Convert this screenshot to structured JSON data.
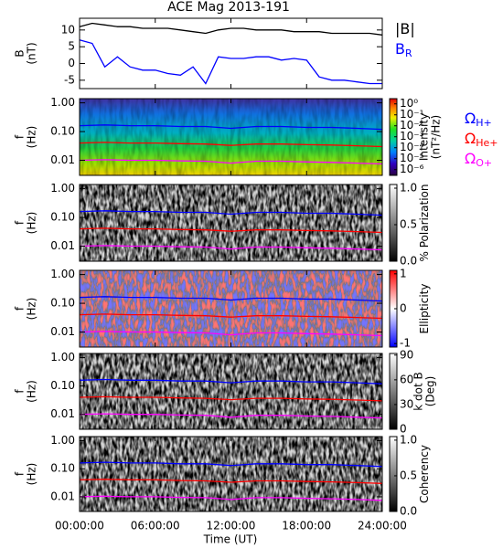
{
  "chart_data": {
    "title": "ACE Mag 2013-191",
    "xlabel": "Time (UT)",
    "xlim": [
      0,
      24
    ],
    "xticks": [
      {
        "value": 0,
        "label": "00:00:00"
      },
      {
        "value": 6,
        "label": "06:00:00"
      },
      {
        "value": 12,
        "label": "12:00:00"
      },
      {
        "value": 18,
        "label": "18:00:00"
      },
      {
        "value": 24,
        "label": "24:00:00"
      }
    ],
    "panels": [
      {
        "type": "line",
        "ylabel": [
          "B",
          "(nT)"
        ],
        "ylim": [
          -7.5,
          13.5
        ],
        "yticks": [
          -5,
          0,
          5,
          10
        ],
        "x": [
          0,
          1,
          2,
          3,
          4,
          5,
          6,
          7,
          8,
          9,
          10,
          11,
          12,
          13,
          14,
          15,
          16,
          17,
          18,
          19,
          20,
          21,
          22,
          23,
          24
        ],
        "series": [
          {
            "name": "|B|",
            "color": "#000000",
            "values": [
              11,
              12,
              11.5,
              11,
              11,
              10.5,
              10.5,
              10.5,
              10,
              9.5,
              9,
              10,
              10.5,
              10.5,
              10,
              10,
              10,
              9.5,
              9.5,
              9.5,
              9,
              9,
              9,
              9,
              8.5
            ]
          },
          {
            "name": "B",
            "name_sub": "R",
            "color": "#0000ff",
            "values": [
              7,
              6,
              -1,
              2,
              -1,
              -2,
              -2,
              -3,
              -3.5,
              -1,
              -6,
              2,
              1.5,
              1.5,
              2,
              2,
              1,
              1.5,
              1,
              -4,
              -5,
              -5,
              -5.5,
              -6,
              -6
            ]
          }
        ]
      },
      {
        "type": "spectrogram",
        "colormap": "rainbow",
        "legend": true,
        "ylabel": [
          "f",
          "(Hz)"
        ],
        "log_y": true,
        "cbar_label": [
          "Intensity",
          "(nT²/Hz)"
        ],
        "clim": [
          3e-07,
          3
        ],
        "log_c": true,
        "cticks": [
          {
            "value": 1,
            "label": "10⁰"
          },
          {
            "value": 0.1,
            "label": "10⁻¹"
          },
          {
            "value": 0.01,
            "label": "10⁻²"
          },
          {
            "value": 0.001,
            "label": "10⁻³"
          },
          {
            "value": 0.0001,
            "label": "10⁻⁴"
          },
          {
            "value": 1e-05,
            "label": "10⁻⁵"
          },
          {
            "value": 1e-06,
            "label": "10⁻⁶"
          }
        ]
      },
      {
        "type": "spectrogram",
        "colormap": "gray",
        "ylabel": [
          "f",
          "(Hz)"
        ],
        "log_y": true,
        "cbar_label": [
          "% Polarization"
        ],
        "clim": [
          0,
          1.05
        ],
        "cticks": [
          {
            "value": 0,
            "label": "0.0"
          },
          {
            "value": 0.5,
            "label": "0.5"
          },
          {
            "value": 1,
            "label": "1.0"
          }
        ]
      },
      {
        "type": "spectrogram",
        "colormap": "bwr",
        "ylabel": [
          "f",
          "(Hz)"
        ],
        "log_y": true,
        "cbar_label": [
          "Ellipticity"
        ],
        "clim": [
          -1.1,
          1.1
        ],
        "cticks": [
          -1,
          0,
          1
        ]
      },
      {
        "type": "spectrogram",
        "colormap": "gray",
        "ylabel": [
          "f",
          "(Hz)"
        ],
        "log_y": true,
        "cbar_label": [
          "k dot B",
          "(Deg)"
        ],
        "clim": [
          0,
          92
        ],
        "cticks": [
          0,
          30,
          60,
          90
        ]
      },
      {
        "type": "spectrogram",
        "colormap": "gray",
        "ylabel": [
          "f",
          "(Hz)"
        ],
        "log_y": true,
        "cbar_label": [
          "Coherency"
        ],
        "clim": [
          0,
          1.05
        ],
        "cticks": [
          {
            "value": 0,
            "label": "0.0"
          },
          {
            "value": 0.5,
            "label": "0.5"
          },
          {
            "value": 1,
            "label": "1.0"
          }
        ]
      }
    ],
    "freq_ylim": [
      0.003,
      1.4
    ],
    "freq_yticks": [
      {
        "value": 1,
        "label": "1.00"
      },
      {
        "value": 0.1,
        "label": "0.10"
      },
      {
        "value": 0.01,
        "label": "0.01"
      }
    ],
    "cyclotron": {
      "x": [
        0,
        2,
        4,
        6,
        8,
        10,
        12,
        14,
        16,
        18,
        20,
        22,
        24
      ],
      "series": [
        {
          "name": "Ω",
          "name_sub": "H+",
          "color": "#0000ff",
          "values": [
            0.16,
            0.17,
            0.16,
            0.16,
            0.15,
            0.15,
            0.13,
            0.15,
            0.15,
            0.14,
            0.14,
            0.13,
            0.12
          ]
        },
        {
          "name": "Ω",
          "name_sub": "He+",
          "color": "#ff0000",
          "values": [
            0.04,
            0.042,
            0.04,
            0.04,
            0.038,
            0.037,
            0.033,
            0.037,
            0.037,
            0.035,
            0.034,
            0.032,
            0.03
          ]
        },
        {
          "name": "Ω",
          "name_sub": "O+",
          "color": "#ff00ff",
          "values": [
            0.01,
            0.0105,
            0.01,
            0.01,
            0.0095,
            0.0093,
            0.008,
            0.0093,
            0.0093,
            0.0088,
            0.0085,
            0.008,
            0.0075
          ]
        }
      ]
    }
  }
}
